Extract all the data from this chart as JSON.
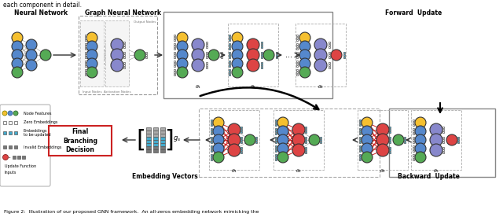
{
  "title_top": "each component in detail.",
  "fig_caption": "Figure 2:  Illustration of our proposed GNN framework.  An all-zeros embedding network mimicking the",
  "section_labels": {
    "neural_network": "Neural Network",
    "graph_neural_network": "Graph Neural Network",
    "forward_update": "Forward  Update",
    "embedding_vectors": "Embedding Vectors",
    "backward_update": "Backward  Update"
  },
  "branching_label": "Final\nBranching\nDecision",
  "bg_color": "#ffffff",
  "node_colors": {
    "yellow": "#f5c030",
    "blue": "#5588cc",
    "green": "#55aa55",
    "red": "#dd4444",
    "cyan": "#44aacc",
    "gray": "#aaaaaa",
    "dark_gray": "#777777",
    "purple": "#8888cc"
  }
}
